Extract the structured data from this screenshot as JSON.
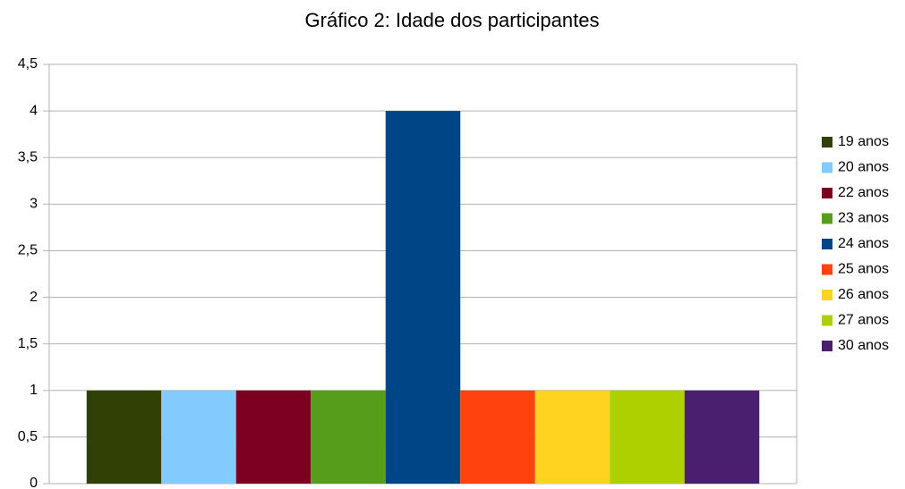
{
  "chart_data": {
    "type": "bar",
    "title": "Gráfico 2: Idade dos participantes",
    "categories": [
      null
    ],
    "series": [
      {
        "name": "19 anos",
        "color": "#314004",
        "values": [
          1
        ]
      },
      {
        "name": "20 anos",
        "color": "#83caff",
        "values": [
          1
        ]
      },
      {
        "name": "22 anos",
        "color": "#7e0021",
        "values": [
          1
        ]
      },
      {
        "name": "23 anos",
        "color": "#579d1c",
        "values": [
          1
        ]
      },
      {
        "name": "24 anos",
        "color": "#004586",
        "values": [
          4
        ]
      },
      {
        "name": "25 anos",
        "color": "#ff420e",
        "values": [
          1
        ]
      },
      {
        "name": "26 anos",
        "color": "#ffd320",
        "values": [
          1
        ]
      },
      {
        "name": "27 anos",
        "color": "#aecf00",
        "values": [
          1
        ]
      },
      {
        "name": "30 anos",
        "color": "#4b1f6f",
        "values": [
          1
        ]
      }
    ],
    "ylim": [
      0,
      4.5
    ],
    "yticks": [
      0,
      {
        "value": 0.5,
        "label": "0,5"
      },
      1,
      {
        "value": 1.5,
        "label": "1,5"
      },
      2,
      {
        "value": 2.5,
        "label": "2,5"
      },
      3,
      {
        "value": 3.5,
        "label": "3,5"
      },
      4,
      {
        "value": 4.5,
        "label": "4,5"
      }
    ],
    "grid": true,
    "legend": "right"
  }
}
